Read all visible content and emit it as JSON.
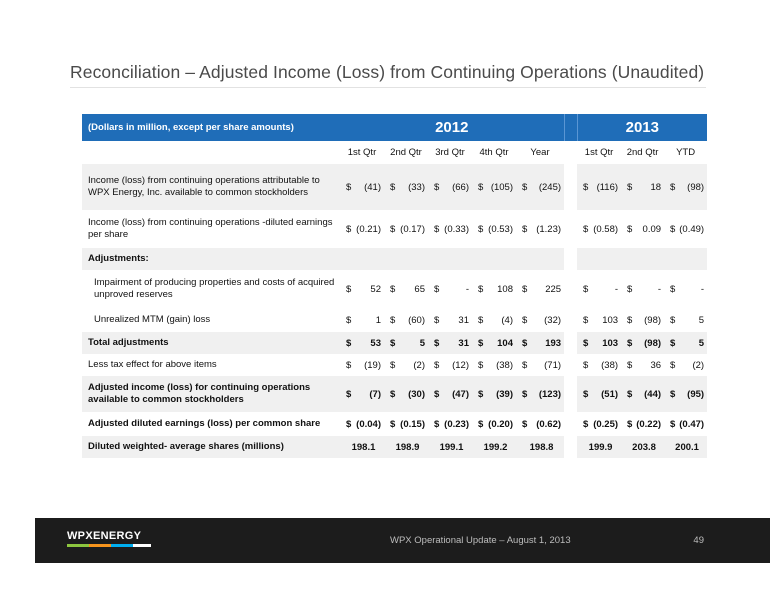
{
  "title": "Reconciliation – Adjusted Income (Loss) from Continuing Operations (Unaudited)",
  "table": {
    "header_label": "(Dollars in million, except per share amounts)",
    "year_2012": "2012",
    "year_2013": "2013",
    "cols_2012": [
      "1st Qtr",
      "2nd Qtr",
      "3rd Qtr",
      "4th Qtr",
      "Year"
    ],
    "cols_2013": [
      "1st Qtr",
      "2nd Qtr",
      "YTD"
    ],
    "rows": [
      {
        "label": "Income (loss) from continuing operations attributable to WPX Energy, Inc. available to common stockholders",
        "indent": false,
        "bold": false,
        "shade": true,
        "dollar": true,
        "v2012": [
          "(41)",
          "(33)",
          "(66)",
          "(105)",
          "(245)"
        ],
        "v2013": [
          "(116)",
          "18",
          "(98)"
        ]
      },
      {
        "label": "Income (loss) from continuing operations -diluted earnings per share",
        "indent": false,
        "bold": false,
        "shade": false,
        "dollar": true,
        "v2012": [
          "(0.21)",
          "(0.17)",
          "(0.33)",
          "(0.53)",
          "(1.23)"
        ],
        "v2013": [
          "(0.58)",
          "0.09",
          "(0.49)"
        ]
      },
      {
        "label": "Adjustments:",
        "indent": false,
        "bold": true,
        "shade": true,
        "dollar": false,
        "v2012": [
          "",
          "",
          "",
          "",
          ""
        ],
        "v2013": [
          "",
          "",
          ""
        ]
      },
      {
        "label": "Impairment of producing properties and costs of acquired unproved reserves",
        "indent": true,
        "bold": false,
        "shade": false,
        "dollar": true,
        "v2012": [
          "52",
          "65",
          "-",
          "108",
          "225"
        ],
        "v2013": [
          "-",
          "-",
          "-"
        ]
      },
      {
        "label": "Unrealized MTM (gain) loss",
        "indent": true,
        "bold": false,
        "shade": false,
        "dollar": true,
        "v2012": [
          "1",
          "(60)",
          "31",
          "(4)",
          "(32)"
        ],
        "v2013": [
          "103",
          "(98)",
          "5"
        ]
      },
      {
        "label": "Total adjustments",
        "indent": false,
        "bold": true,
        "shade": true,
        "dollar": true,
        "v2012": [
          "53",
          "5",
          "31",
          "104",
          "193"
        ],
        "v2013": [
          "103",
          "(98)",
          "5"
        ]
      },
      {
        "label": "Less tax effect for above items",
        "indent": false,
        "bold": false,
        "shade": false,
        "dollar": true,
        "v2012": [
          "(19)",
          "(2)",
          "(12)",
          "(38)",
          "(71)"
        ],
        "v2013": [
          "(38)",
          "36",
          "(2)"
        ]
      },
      {
        "label": "Adjusted income (loss) for continuing operations available to common stockholders",
        "indent": false,
        "bold": true,
        "shade": true,
        "dollar": true,
        "v2012": [
          "(7)",
          "(30)",
          "(47)",
          "(39)",
          "(123)"
        ],
        "v2013": [
          "(51)",
          "(44)",
          "(95)"
        ]
      },
      {
        "label": "Adjusted diluted earnings (loss) per common share",
        "indent": false,
        "bold": true,
        "shade": false,
        "dollar": true,
        "v2012": [
          "(0.04)",
          "(0.15)",
          "(0.23)",
          "(0.20)",
          "(0.62)"
        ],
        "v2013": [
          "(0.25)",
          "(0.22)",
          "(0.47)"
        ]
      },
      {
        "label": "Diluted weighted- average shares (millions)",
        "indent": false,
        "bold": true,
        "shade": true,
        "dollar": false,
        "v2012": [
          "198.1",
          "198.9",
          "199.1",
          "199.2",
          "198.8"
        ],
        "v2013": [
          "199.9",
          "203.8",
          "200.1"
        ]
      }
    ]
  },
  "footer": {
    "logo_text": "WPXENERGY",
    "logo_colors": [
      "#8dc63f",
      "#f7941d",
      "#00aeef",
      "#ffffff"
    ],
    "caption": "WPX Operational Update – August 1, 2013",
    "page_number": "49"
  },
  "colors": {
    "header_blue": "#1f6db8",
    "row_shade": "#f0f0f0",
    "footer_bg": "#1c1c1c"
  }
}
